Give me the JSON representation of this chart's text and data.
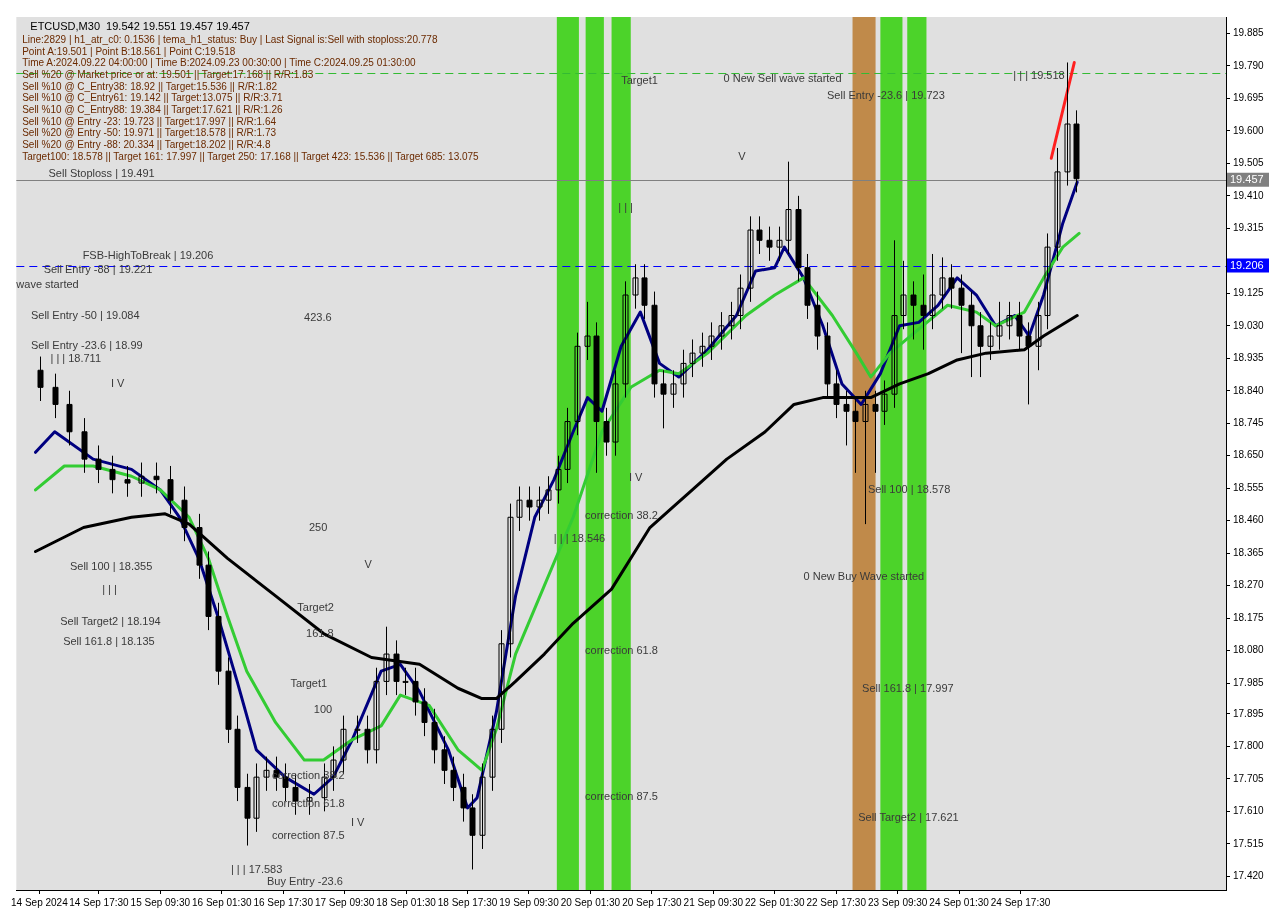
{
  "chart_data": {
    "type": "candlestick",
    "title": "ETCUSD,M30  19.542 19.551 19.457 19.457",
    "x": [
      "2024-09-14T02:15",
      "2024-09-14T06:00",
      "2024-09-14T09:45",
      "2024-09-14T13:30",
      "2024-09-14T17:15",
      "2024-09-14T21:00",
      "2024-09-15T00:45",
      "2024-09-15T04:30",
      "2024-09-15T08:15",
      "2024-09-15T12:00",
      "2024-09-15T15:45",
      "2024-09-15T19:30",
      "2024-09-15T22:00",
      "2024-09-16T00:30",
      "2024-09-16T03:00",
      "2024-09-16T05:30",
      "2024-09-16T08:00",
      "2024-09-16T10:30",
      "2024-09-16T13:00",
      "2024-09-16T15:30",
      "2024-09-16T18:00",
      "2024-09-16T20:30",
      "2024-09-17T00:15",
      "2024-09-17T04:00",
      "2024-09-17T06:30",
      "2024-09-17T09:00",
      "2024-09-17T12:45",
      "2024-09-17T15:15",
      "2024-09-17T17:45",
      "2024-09-17T20:15",
      "2024-09-17T22:45",
      "2024-09-18T01:15",
      "2024-09-18T03:45",
      "2024-09-18T06:15",
      "2024-09-18T08:45",
      "2024-09-18T11:15",
      "2024-09-18T13:45",
      "2024-09-18T16:15",
      "2024-09-18T18:45",
      "2024-09-18T21:15",
      "2024-09-18T23:45",
      "2024-09-19T02:15",
      "2024-09-19T04:30",
      "2024-09-19T07:00",
      "2024-09-19T09:30",
      "2024-09-19T12:00",
      "2024-09-19T14:30",
      "2024-09-19T17:00",
      "2024-09-19T19:30",
      "2024-09-19T22:00",
      "2024-09-20T00:30",
      "2024-09-20T03:00",
      "2024-09-20T05:30",
      "2024-09-20T08:00",
      "2024-09-20T10:30",
      "2024-09-20T13:00",
      "2024-09-20T15:30",
      "2024-09-20T18:00",
      "2024-09-20T20:30",
      "2024-09-20T23:00",
      "2024-09-21T01:30",
      "2024-09-21T04:00",
      "2024-09-21T06:30",
      "2024-09-21T09:00",
      "2024-09-21T11:30",
      "2024-09-21T14:00",
      "2024-09-21T16:30",
      "2024-09-21T19:00",
      "2024-09-21T21:30",
      "2024-09-22T00:00",
      "2024-09-22T02:30",
      "2024-09-22T05:00",
      "2024-09-22T07:30",
      "2024-09-22T10:00",
      "2024-09-22T12:30",
      "2024-09-22T15:00",
      "2024-09-22T17:30",
      "2024-09-22T20:00",
      "2024-09-22T22:30",
      "2024-09-23T01:00",
      "2024-09-23T03:30",
      "2024-09-23T06:00",
      "2024-09-23T08:30",
      "2024-09-23T11:00",
      "2024-09-23T13:30",
      "2024-09-23T16:00",
      "2024-09-23T18:30",
      "2024-09-23T21:00",
      "2024-09-23T23:30",
      "2024-09-24T02:00",
      "2024-09-24T04:30",
      "2024-09-24T07:00",
      "2024-09-24T09:30",
      "2024-09-24T12:00",
      "2024-09-24T14:30",
      "2024-09-24T17:00",
      "2024-09-24T19:30",
      "2024-09-24T22:00",
      "2024-09-25T00:30",
      "2024-09-25T03:00",
      "2024-09-25T05:30",
      "2024-09-25T08:00"
    ],
    "ohlc": [
      [
        18.9,
        18.94,
        18.81,
        18.85
      ],
      [
        18.85,
        18.89,
        18.76,
        18.8
      ],
      [
        18.8,
        18.84,
        18.68,
        18.72
      ],
      [
        18.72,
        18.76,
        18.6,
        18.64
      ],
      [
        18.64,
        18.68,
        18.57,
        18.61
      ],
      [
        18.61,
        18.65,
        18.54,
        18.58
      ],
      [
        18.58,
        18.62,
        18.53,
        18.57
      ],
      [
        18.57,
        18.63,
        18.53,
        18.59
      ],
      [
        18.59,
        18.63,
        18.54,
        18.58
      ],
      [
        18.58,
        18.62,
        18.48,
        18.52
      ],
      [
        18.52,
        18.56,
        18.4,
        18.44
      ],
      [
        18.44,
        18.48,
        18.29,
        18.33
      ],
      [
        18.33,
        18.37,
        18.14,
        18.18
      ],
      [
        18.18,
        18.22,
        17.98,
        18.02
      ],
      [
        18.02,
        18.06,
        17.81,
        17.85
      ],
      [
        17.85,
        17.89,
        17.64,
        17.68
      ],
      [
        17.68,
        17.72,
        17.51,
        17.59
      ],
      [
        17.59,
        17.75,
        17.55,
        17.71
      ],
      [
        17.71,
        17.77,
        17.67,
        17.73
      ],
      [
        17.73,
        17.77,
        17.67,
        17.71
      ],
      [
        17.71,
        17.75,
        17.64,
        17.68
      ],
      [
        17.68,
        17.72,
        17.6,
        17.64
      ],
      [
        17.64,
        17.69,
        17.6,
        17.65
      ],
      [
        17.65,
        17.75,
        17.61,
        17.71
      ],
      [
        17.71,
        17.8,
        17.67,
        17.76
      ],
      [
        17.76,
        17.89,
        17.72,
        17.85
      ],
      [
        17.85,
        17.89,
        17.81,
        17.85
      ],
      [
        17.85,
        17.89,
        17.75,
        17.79
      ],
      [
        17.79,
        18.03,
        17.75,
        17.99
      ],
      [
        17.99,
        18.15,
        17.95,
        18.07
      ],
      [
        18.07,
        18.11,
        17.95,
        17.99
      ],
      [
        17.99,
        18.03,
        17.95,
        17.99
      ],
      [
        17.99,
        18.03,
        17.89,
        17.93
      ],
      [
        17.93,
        17.97,
        17.83,
        17.87
      ],
      [
        17.87,
        17.91,
        17.75,
        17.79
      ],
      [
        17.79,
        17.83,
        17.69,
        17.73
      ],
      [
        17.73,
        17.77,
        17.64,
        17.68
      ],
      [
        17.68,
        17.72,
        17.58,
        17.62
      ],
      [
        17.62,
        17.66,
        17.44,
        17.54
      ],
      [
        17.54,
        17.75,
        17.5,
        17.71
      ],
      [
        17.71,
        17.89,
        17.67,
        17.85
      ],
      [
        17.85,
        18.14,
        17.81,
        18.1
      ],
      [
        18.1,
        18.51,
        18.06,
        18.47
      ],
      [
        18.47,
        18.56,
        18.43,
        18.52
      ],
      [
        18.52,
        18.56,
        18.46,
        18.5
      ],
      [
        18.5,
        18.56,
        18.46,
        18.52
      ],
      [
        18.52,
        18.59,
        18.48,
        18.55
      ],
      [
        18.55,
        18.65,
        18.51,
        18.61
      ],
      [
        18.61,
        18.79,
        18.57,
        18.75
      ],
      [
        18.75,
        19.01,
        18.71,
        18.97
      ],
      [
        18.97,
        19.1,
        18.93,
        19.0
      ],
      [
        19.0,
        19.04,
        18.6,
        18.75
      ],
      [
        18.75,
        18.79,
        18.65,
        18.69
      ],
      [
        18.69,
        18.9,
        18.65,
        18.86
      ],
      [
        18.86,
        19.16,
        18.82,
        19.12
      ],
      [
        19.12,
        19.21,
        19.08,
        19.17
      ],
      [
        19.17,
        19.21,
        19.05,
        19.09
      ],
      [
        19.09,
        19.13,
        18.82,
        18.86
      ],
      [
        18.86,
        18.9,
        18.73,
        18.83
      ],
      [
        18.83,
        18.9,
        18.79,
        18.86
      ],
      [
        18.86,
        18.96,
        18.82,
        18.92
      ],
      [
        18.92,
        18.99,
        18.88,
        18.95
      ],
      [
        18.95,
        19.01,
        18.91,
        18.97
      ],
      [
        18.97,
        19.04,
        18.93,
        19.0
      ],
      [
        19.0,
        19.07,
        18.96,
        19.03
      ],
      [
        19.03,
        19.1,
        18.99,
        19.06
      ],
      [
        19.06,
        19.18,
        19.02,
        19.14
      ],
      [
        19.14,
        19.35,
        19.1,
        19.31
      ],
      [
        19.31,
        19.35,
        19.24,
        19.28
      ],
      [
        19.28,
        19.32,
        19.22,
        19.26
      ],
      [
        19.26,
        19.32,
        19.22,
        19.28
      ],
      [
        19.28,
        19.51,
        19.24,
        19.37
      ],
      [
        19.37,
        19.41,
        19.16,
        19.2
      ],
      [
        19.2,
        19.24,
        19.05,
        19.09
      ],
      [
        19.09,
        19.13,
        18.96,
        19.0
      ],
      [
        19.0,
        19.04,
        18.82,
        18.86
      ],
      [
        18.86,
        18.9,
        18.76,
        18.8
      ],
      [
        18.8,
        18.84,
        18.68,
        18.78
      ],
      [
        18.78,
        18.82,
        18.6,
        18.75
      ],
      [
        18.75,
        18.84,
        18.45,
        18.8
      ],
      [
        18.8,
        18.84,
        18.6,
        18.78
      ],
      [
        18.78,
        18.87,
        18.74,
        18.83
      ],
      [
        18.83,
        19.28,
        18.79,
        19.06
      ],
      [
        19.06,
        19.22,
        19.02,
        19.12
      ],
      [
        19.12,
        19.16,
        18.99,
        19.09
      ],
      [
        19.09,
        19.18,
        18.96,
        19.06
      ],
      [
        19.06,
        19.24,
        19.02,
        19.12
      ],
      [
        19.12,
        19.23,
        19.08,
        19.17
      ],
      [
        19.17,
        19.21,
        19.08,
        19.14
      ],
      [
        19.14,
        19.18,
        18.95,
        19.09
      ],
      [
        19.09,
        19.13,
        18.88,
        19.03
      ],
      [
        19.03,
        19.07,
        18.88,
        18.97
      ],
      [
        18.97,
        19.04,
        18.93,
        19.0
      ],
      [
        19.0,
        19.1,
        18.96,
        19.03
      ],
      [
        19.03,
        19.1,
        18.99,
        19.06
      ],
      [
        19.06,
        19.1,
        18.96,
        19.0
      ],
      [
        19.0,
        19.04,
        18.8,
        18.97
      ],
      [
        18.97,
        19.1,
        18.9,
        19.06
      ],
      [
        19.06,
        19.3,
        19.02,
        19.26
      ],
      [
        19.26,
        19.55,
        19.22,
        19.48
      ],
      [
        19.48,
        19.8,
        19.44,
        19.62
      ],
      [
        19.62,
        19.66,
        19.42,
        19.46
      ]
    ],
    "color": "#000000",
    "series": [
      {
        "type": "line",
        "color": "#000000",
        "x": [
          "2024-09-14T01:00",
          "2024-09-14T13:30",
          "2024-09-15T02:00",
          "2024-09-15T10:45",
          "2024-09-15T17:00",
          "2024-09-16T03:00",
          "2024-09-16T15:30",
          "2024-09-17T04:00",
          "2024-09-17T16:30",
          "2024-09-18T05:00",
          "2024-09-18T15:00",
          "2024-09-18T21:15",
          "2024-09-19T01:00",
          "2024-09-19T06:00",
          "2024-09-19T13:30",
          "2024-09-19T21:00",
          "2024-09-20T07:00",
          "2024-09-20T17:00",
          "2024-09-21T03:00",
          "2024-09-21T13:00",
          "2024-09-21T23:00",
          "2024-09-22T06:30",
          "2024-09-22T14:00",
          "2024-09-22T21:30",
          "2024-09-23T02:30",
          "2024-09-23T10:00",
          "2024-09-23T17:30",
          "2024-09-24T01:00",
          "2024-09-24T08:30",
          "2024-09-24T18:30",
          "2024-09-24T23:30",
          "2024-09-25T08:15"
        ],
        "values": [
          18.37,
          18.44,
          18.47,
          18.48,
          18.45,
          18.35,
          18.24,
          18.13,
          18.06,
          18.04,
          17.97,
          17.94,
          17.94,
          17.99,
          18.07,
          18.16,
          18.26,
          18.44,
          18.54,
          18.64,
          18.72,
          18.8,
          18.82,
          18.82,
          18.82,
          18.86,
          18.89,
          18.93,
          18.95,
          18.96,
          19.0,
          19.06
        ]
      },
      {
        "type": "line",
        "color": "#33cc33",
        "x": [
          "2024-09-14T01:00",
          "2024-09-14T08:30",
          "2024-09-14T16:00",
          "2024-09-15T02:00",
          "2024-09-15T09:30",
          "2024-09-15T17:00",
          "2024-09-15T22:00",
          "2024-09-16T03:00",
          "2024-09-16T08:00",
          "2024-09-16T15:30",
          "2024-09-16T23:00",
          "2024-09-17T04:00",
          "2024-09-17T11:30",
          "2024-09-17T19:00",
          "2024-09-18T00:00",
          "2024-09-18T07:30",
          "2024-09-18T15:00",
          "2024-09-18T21:15",
          "2024-09-19T01:00",
          "2024-09-19T06:00",
          "2024-09-19T13:30",
          "2024-09-19T21:00",
          "2024-09-20T04:30",
          "2024-09-20T12:00",
          "2024-09-20T19:30",
          "2024-09-21T00:30",
          "2024-09-21T08:00",
          "2024-09-21T18:00",
          "2024-09-22T01:30",
          "2024-09-22T09:00",
          "2024-09-22T16:30",
          "2024-09-22T22:45",
          "2024-09-23T02:30",
          "2024-09-23T07:30",
          "2024-09-23T15:00",
          "2024-09-23T22:30",
          "2024-09-24T06:00",
          "2024-09-24T11:00",
          "2024-09-24T18:30",
          "2024-09-24T23:30",
          "2024-09-25T04:30",
          "2024-09-25T08:45"
        ],
        "values": [
          18.55,
          18.62,
          18.62,
          18.59,
          18.55,
          18.47,
          18.35,
          18.18,
          18.02,
          17.87,
          17.76,
          17.76,
          17.82,
          17.86,
          17.95,
          17.92,
          17.79,
          17.73,
          17.85,
          18.07,
          18.27,
          18.47,
          18.72,
          18.85,
          18.9,
          18.89,
          18.95,
          19.06,
          19.12,
          19.17,
          19.06,
          18.95,
          18.88,
          18.95,
          19.02,
          19.09,
          19.07,
          19.03,
          19.07,
          19.17,
          19.26,
          19.3
        ]
      },
      {
        "type": "line",
        "color": "#000080",
        "x": [
          "2024-09-14T01:00",
          "2024-09-14T06:00",
          "2024-09-14T16:00",
          "2024-09-15T02:00",
          "2024-09-15T09:30",
          "2024-09-15T14:30",
          "2024-09-15T19:30",
          "2024-09-16T00:30",
          "2024-09-16T05:30",
          "2024-09-16T10:30",
          "2024-09-16T18:00",
          "2024-09-17T01:30",
          "2024-09-17T06:30",
          "2024-09-17T11:30",
          "2024-09-17T19:00",
          "2024-09-18T00:00",
          "2024-09-18T05:00",
          "2024-09-18T12:30",
          "2024-09-18T17:30",
          "2024-09-18T20:00",
          "2024-09-19T01:00",
          "2024-09-19T06:00",
          "2024-09-19T11:00",
          "2024-09-19T16:00",
          "2024-09-19T21:00",
          "2024-09-20T00:45",
          "2024-09-20T04:30",
          "2024-09-20T09:30",
          "2024-09-20T14:30",
          "2024-09-20T19:30",
          "2024-09-21T00:30",
          "2024-09-21T08:00",
          "2024-09-21T15:30",
          "2024-09-21T20:30",
          "2024-09-22T01:30",
          "2024-09-22T04:00",
          "2024-09-22T09:00",
          "2024-09-22T14:00",
          "2024-09-22T19:00",
          "2024-09-23T00:00",
          "2024-09-23T05:00",
          "2024-09-23T10:00",
          "2024-09-23T15:00",
          "2024-09-23T20:00",
          "2024-09-24T01:00",
          "2024-09-24T06:00",
          "2024-09-24T11:00",
          "2024-09-24T16:00",
          "2024-09-24T19:45",
          "2024-09-24T23:30",
          "2024-09-25T04:30",
          "2024-09-25T08:15"
        ],
        "values": [
          18.66,
          18.72,
          18.64,
          18.61,
          18.55,
          18.47,
          18.35,
          18.18,
          17.99,
          17.79,
          17.71,
          17.66,
          17.71,
          17.82,
          18.02,
          18.04,
          17.96,
          17.79,
          17.62,
          17.65,
          17.9,
          18.24,
          18.47,
          18.58,
          18.72,
          18.82,
          18.78,
          18.97,
          19.07,
          18.92,
          18.88,
          18.96,
          19.06,
          19.19,
          19.2,
          19.26,
          19.17,
          19.03,
          18.86,
          18.8,
          18.89,
          19.03,
          19.04,
          19.09,
          19.17,
          19.12,
          19.03,
          19.06,
          19.0,
          19.12,
          19.33,
          19.45
        ]
      },
      {
        "type": "line",
        "color": "#ff2020",
        "x": [
          "2024-09-25T01:30",
          "2024-09-25T07:30"
        ],
        "values": [
          19.52,
          19.8
        ]
      }
    ],
    "marker": "none",
    "xlim": [
      "2024-09-13T20:00",
      "2024-09-26T23:00"
    ],
    "xticks": [
      {
        "value": "2024-09-14T02:00",
        "label": "14 Sep 2024"
      },
      {
        "value": "2024-09-14T17:30",
        "label": "14 Sep 17:30"
      },
      {
        "value": "2024-09-15T09:30",
        "label": "15 Sep 09:30"
      },
      {
        "value": "2024-09-16T01:30",
        "label": "16 Sep 01:30"
      },
      {
        "value": "2024-09-16T17:30",
        "label": "16 Sep 17:30"
      },
      {
        "value": "2024-09-17T09:30",
        "label": "17 Sep 09:30"
      },
      {
        "value": "2024-09-18T01:30",
        "label": "18 Sep 01:30"
      },
      {
        "value": "2024-09-18T17:30",
        "label": "18 Sep 17:30"
      },
      {
        "value": "2024-09-19T09:30",
        "label": "19 Sep 09:30"
      },
      {
        "value": "2024-09-20T01:30",
        "label": "20 Sep 01:30"
      },
      {
        "value": "2024-09-20T17:30",
        "label": "20 Sep 17:30"
      },
      {
        "value": "2024-09-21T09:30",
        "label": "21 Sep 09:30"
      },
      {
        "value": "2024-09-22T01:30",
        "label": "22 Sep 01:30"
      },
      {
        "value": "2024-09-22T17:30",
        "label": "22 Sep 17:30"
      },
      {
        "value": "2024-09-23T09:30",
        "label": "23 Sep 09:30"
      },
      {
        "value": "2024-09-24T01:30",
        "label": "24 Sep 01:30"
      },
      {
        "value": "2024-09-24T17:30",
        "label": "24 Sep 17:30"
      }
    ],
    "ylim": [
      17.38,
      19.933
    ],
    "yticks": [
      {
        "value": 17.42,
        "label": "17.420"
      },
      17.515,
      {
        "value": 17.61,
        "label": "17.610"
      },
      17.705,
      {
        "value": 17.8,
        "label": "17.800"
      },
      17.895,
      17.985,
      {
        "value": 18.08,
        "label": "18.080"
      },
      18.175,
      {
        "value": 18.27,
        "label": "18.270"
      },
      18.365,
      {
        "value": 18.46,
        "label": "18.460"
      },
      18.555,
      {
        "value": 18.65,
        "label": "18.650"
      },
      18.745,
      {
        "value": 18.84,
        "label": "18.840"
      },
      18.935,
      {
        "value": 19.03,
        "label": "19.030"
      },
      19.125,
      {
        "value": 19.22,
        "label": null
      },
      19.315,
      {
        "value": 19.41,
        "label": "19.410"
      },
      19.505,
      {
        "value": 19.6,
        "label": "19.600"
      },
      19.695,
      {
        "value": 19.79,
        "label": "19.790"
      },
      19.885
    ],
    "ref_lines": [
      {
        "axis": "y",
        "value": 19.457,
        "label": "19.457",
        "color": "#808080",
        "line_style": "solid"
      },
      {
        "axis": "y",
        "value": 19.206,
        "label": "19.206",
        "color": "#0000ff",
        "line_style": "dashed"
      },
      {
        "axis": "y",
        "value": 19.77,
        "color": "#33bb33",
        "line_style": "dashed"
      }
    ],
    "bands": [
      {
        "axis": "x",
        "from": "2024-09-19T16:45",
        "to": "2024-09-19T22:30",
        "color": "#4cd32a"
      },
      {
        "axis": "x",
        "from": "2024-09-20T00:15",
        "to": "2024-09-20T05:00",
        "color": "#4cd32a"
      },
      {
        "axis": "x",
        "from": "2024-09-20T07:00",
        "to": "2024-09-20T12:00",
        "color": "#4cd32a"
      },
      {
        "axis": "x",
        "from": "2024-09-22T21:45",
        "to": "2024-09-23T03:45",
        "color": "#c08a4a"
      },
      {
        "axis": "x",
        "from": "2024-09-23T05:00",
        "to": "2024-09-23T10:45",
        "color": "#4cd32a"
      },
      {
        "axis": "x",
        "from": "2024-09-23T12:00",
        "to": "2024-09-23T17:00",
        "color": "#4cd32a"
      }
    ],
    "annotations": [
      "Line:2829 | h1_atr_c0: 0.1536 | tema_h1_status: Buy | Last Signal is:Sell with stoploss:20.778",
      "Point A:19.501 | Point B:18.561 | Point C:19.518",
      "Time A:2024.09.22 04:00:00 | Time B:2024.09.23 00:30:00 | Time C:2024.09.25 01:30:00",
      "Sell %20 @ Market price or at: 19.501 || Target:17.168 || R/R:1.83",
      "Sell %10 @ C_Entry38: 18.92 || Target:15.536 || R/R:1.82",
      "Sell %10 @ C_Entry61: 19.142 || Target:13.075 || R/R:3.71",
      "Sell %10 @ C_Entry88: 19.384 || Target:17.621 || R/R:1.26",
      "Sell %10 @ Entry -23: 19.723 || Target:17.997 || R/R:1.64",
      "Sell %20 @ Entry -50: 19.971 || Target:18.578 || R/R:1.73",
      "Sell %20 @ Entry -88: 20.334 || Target:18.202 || R/R:4.8",
      "Target100: 18.578 || Target 161: 17.997 || Target 250: 17.168 || Target 423: 15.536 || Target 685: 13.075",
      "Sell Stoploss | 19.491",
      "FSB-HighToBreak | 19.206",
      "Sell Entry -88 | 19.221",
      "wave started",
      "Sell Entry -50 | 19.084",
      "Sell Entry -23.6 | 18.99",
      "| | | 18.711",
      "I V",
      "423.6",
      "250",
      "Sell 100 | 18.355",
      "| | |",
      "Sell Target2 | 18.194",
      "Sell 161.8 | 18.135",
      "Target2",
      "161.8",
      "Target1",
      "100",
      "V",
      "correction 38.2",
      "correction 61.8",
      "correction 87.5",
      "I V",
      "| | | 17.583",
      "Buy Entry -23.6",
      "Target1",
      "0 New Sell wave started",
      "Sell Entry -23.6 | 19.723",
      "| | | 19.518",
      "V",
      "| | |",
      "I V",
      "correction 38.2",
      "| | | 18.546",
      "correction 61.8",
      "correction 87.5",
      "0 New Buy Wave started",
      "Sell 100 | 18.578",
      "Sell 161.8 | 17.997",
      "Sell Target2 | 17.621"
    ]
  }
}
